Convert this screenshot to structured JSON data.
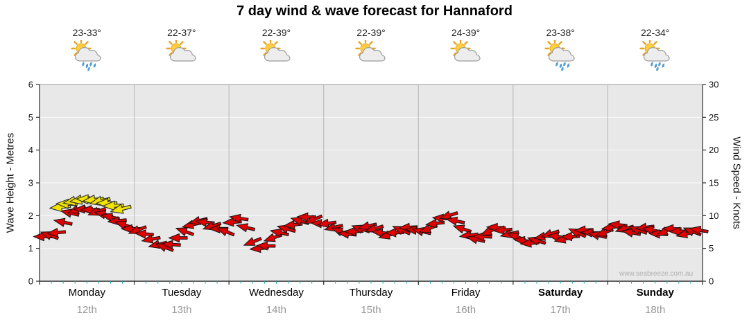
{
  "title": "7 day wind & wave forecast for Hannaford",
  "watermark": "www.seabreeze.com.au",
  "days": [
    {
      "name": "Monday",
      "date": "12th",
      "temp": "23-33°",
      "icon": "sun-cloud-rain",
      "weekend": false
    },
    {
      "name": "Tuesday",
      "date": "13th",
      "temp": "22-37°",
      "icon": "sun-cloud",
      "weekend": false
    },
    {
      "name": "Wednesday",
      "date": "14th",
      "temp": "22-39°",
      "icon": "sun-cloud",
      "weekend": false
    },
    {
      "name": "Thursday",
      "date": "15th",
      "temp": "22-39°",
      "icon": "sun-cloud",
      "weekend": false
    },
    {
      "name": "Friday",
      "date": "16th",
      "temp": "24-39°",
      "icon": "sun-cloud",
      "weekend": false
    },
    {
      "name": "Saturday",
      "date": "17th",
      "temp": "23-38°",
      "icon": "sun-cloud-rain",
      "weekend": true
    },
    {
      "name": "Sunday",
      "date": "18th",
      "temp": "22-34°",
      "icon": "sun-cloud-rain",
      "weekend": true
    }
  ],
  "chart_data": {
    "type": "wind-arrow-forecast",
    "title": "7 day wind & wave forecast for Hannaford",
    "left_axis": {
      "label": "Wave Height - Metres",
      "min": 0,
      "max": 6,
      "ticks": [
        0,
        1,
        2,
        3,
        4,
        5,
        6
      ]
    },
    "right_axis": {
      "label": "Wind Speed - Knots",
      "min": 0,
      "max": 30,
      "ticks": [
        0,
        5,
        10,
        15,
        20,
        25,
        30
      ]
    },
    "categories": [
      "Monday 12th",
      "Tuesday 13th",
      "Wednesday 14th",
      "Thursday 15th",
      "Friday 16th",
      "Saturday 17th",
      "Sunday 18th"
    ],
    "colors": {
      "arrow_normal": "#E00000",
      "arrow_highlight": "#F2E400",
      "plot_bg": "#E8E8E8",
      "minor_tick": "#00A8A8"
    },
    "wind_knots_by_day": [
      [
        6.8,
        7.0,
        7.4,
        9.0,
        10.4,
        10.9,
        11.0,
        10.9,
        10.6,
        10.2,
        9.8,
        9.2,
        8.6,
        8.0
      ],
      [
        7.8,
        7.2,
        6.4,
        5.6,
        5.2,
        5.6,
        6.6,
        7.6,
        8.6,
        9.2,
        9.0,
        8.4,
        8.0,
        7.6
      ],
      [
        9.0,
        9.6,
        8.2,
        6.0,
        5.0,
        5.4,
        6.6,
        7.4,
        8.0,
        8.6,
        9.2,
        9.8,
        9.4,
        8.8
      ],
      [
        8.8,
        8.2,
        7.6,
        7.2,
        7.6,
        8.0,
        8.4,
        8.0,
        7.4,
        7.0,
        7.4,
        7.8,
        8.2,
        7.8
      ],
      [
        7.6,
        8.0,
        8.8,
        9.6,
        10.0,
        9.2,
        8.0,
        7.0,
        6.4,
        6.8,
        7.6,
        8.2,
        7.8,
        7.2
      ],
      [
        6.8,
        6.2,
        5.8,
        6.2,
        6.8,
        7.2,
        6.8,
        6.4,
        6.8,
        7.4,
        7.8,
        7.4,
        7.0,
        7.4
      ],
      [
        8.2,
        8.6,
        8.0,
        7.4,
        7.8,
        8.2,
        7.8,
        7.2,
        7.6,
        8.0,
        7.6,
        7.2,
        7.6,
        7.8
      ]
    ],
    "yellow_highlight": {
      "day_index": 0,
      "fracs": [
        0.22,
        0.29,
        0.36,
        0.43,
        0.5,
        0.57,
        0.64,
        0.71,
        0.78,
        0.86
      ],
      "knots": [
        11.3,
        11.8,
        12.2,
        12.4,
        12.5,
        12.4,
        12.2,
        11.9,
        11.5,
        11.0
      ]
    }
  }
}
